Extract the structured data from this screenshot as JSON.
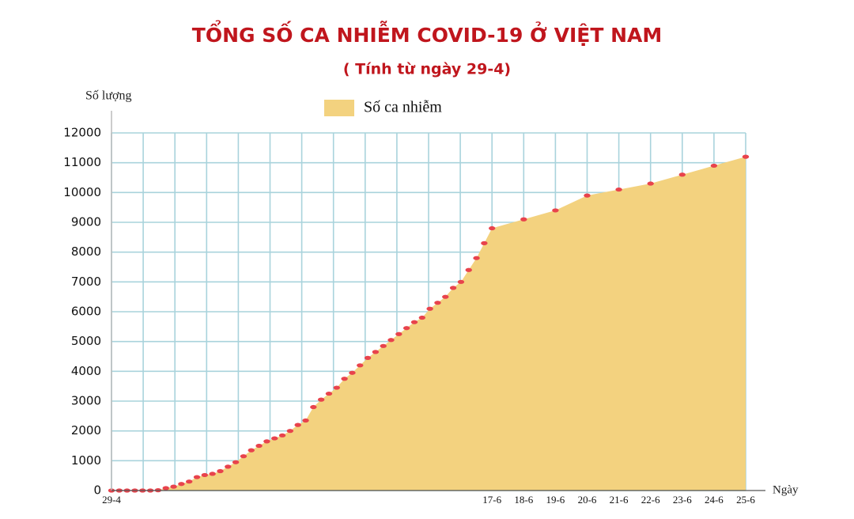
{
  "chart_data": {
    "type": "area",
    "title": "TỔNG SỐ CA NHIỄM COVID-19 Ở VIỆT NAM",
    "subtitle": "( Tính từ ngày 29-4)",
    "y_label": "Số lượng",
    "x_label": "Ngày",
    "categories": [
      "29-4",
      null,
      null,
      null,
      null,
      null,
      null,
      null,
      null,
      null,
      null,
      null,
      null,
      null,
      null,
      null,
      null,
      null,
      null,
      null,
      null,
      null,
      null,
      null,
      null,
      null,
      null,
      null,
      null,
      null,
      null,
      null,
      null,
      null,
      null,
      null,
      null,
      null,
      null,
      null,
      null,
      null,
      null,
      null,
      null,
      null,
      null,
      null,
      null,
      "17-6",
      "18-6",
      "19-6",
      "20-6",
      "21-6",
      "22-6",
      "23-6",
      "24-6",
      "25-6"
    ],
    "series": [
      {
        "name": "Số ca nhiễm",
        "color": "#f3d27f",
        "marker_color": "#e8434c",
        "values": [
          0,
          0,
          0,
          0,
          0,
          0,
          10,
          80,
          130,
          220,
          300,
          450,
          520,
          560,
          650,
          800,
          950,
          1150,
          1350,
          1500,
          1650,
          1750,
          1850,
          2000,
          2200,
          2350,
          2800,
          3050,
          3250,
          3450,
          3750,
          3950,
          4200,
          4450,
          4650,
          4850,
          5050,
          5250,
          5450,
          5650,
          5800,
          6100,
          6300,
          6500,
          6800,
          7000,
          7400,
          7800,
          8300,
          8800,
          9100,
          9400,
          9900,
          10100,
          10300,
          10600,
          10900,
          11200
        ]
      }
    ],
    "ylim": [
      0,
      12000
    ],
    "yticks": [
      0,
      1000,
      2000,
      3000,
      4000,
      5000,
      6000,
      7000,
      8000,
      9000,
      10000,
      11000,
      12000
    ],
    "grid": true
  }
}
